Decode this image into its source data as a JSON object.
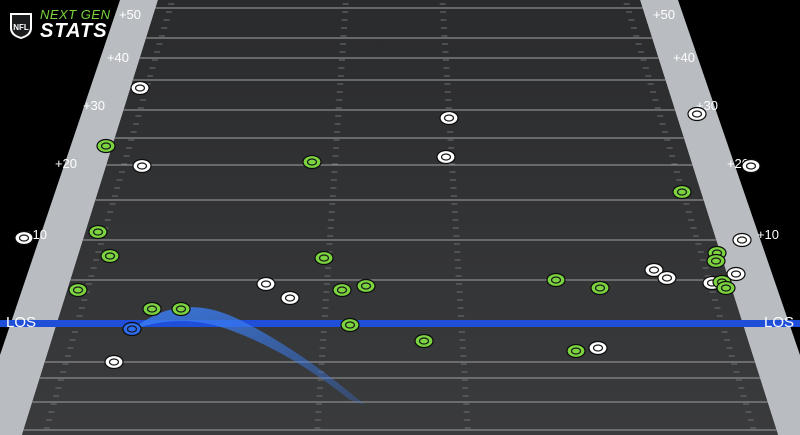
{
  "logo": {
    "shield_text": "NFL",
    "brand_top": "NEXT GEN",
    "brand_bottom": "STATS"
  },
  "field": {
    "yard_labels": [
      "+50",
      "+40",
      "+30",
      "+20",
      "+10"
    ],
    "los_label": "LOS",
    "colors": {
      "turf": "#2e2f31",
      "yard_line": "#8a8b8d",
      "sideline": "#b9bdc1",
      "los": "#1f4fd9",
      "offense": "#7ad33f",
      "defense": "#ffffff",
      "ball_carrier": "#2f6df0"
    }
  }
}
